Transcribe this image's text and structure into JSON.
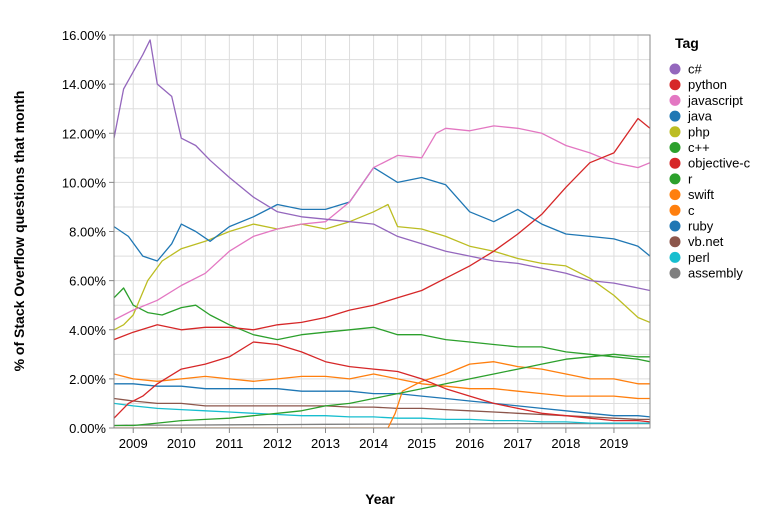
{
  "chart_data": {
    "type": "line",
    "xlabel": "Year",
    "ylabel": "% of Stack Overflow questions that month",
    "legend_title": "Tag",
    "legend_position": "right",
    "grid": true,
    "xlim": [
      2008.6,
      2019.75
    ],
    "ylim": [
      0,
      16
    ],
    "x_ticks": [
      "2009",
      "2010",
      "2011",
      "2012",
      "2013",
      "2014",
      "2015",
      "2016",
      "2017",
      "2018",
      "2019"
    ],
    "y_ticks": [
      "0.00%",
      "2.00%",
      "4.00%",
      "6.00%",
      "8.00%",
      "10.00%",
      "12.00%",
      "14.00%",
      "16.00%"
    ],
    "series": [
      {
        "name": "c#",
        "color": "#9467bd",
        "x": [
          2008.6,
          2008.8,
          2009.0,
          2009.2,
          2009.35,
          2009.5,
          2009.8,
          2010.0,
          2010.3,
          2010.6,
          2011.0,
          2011.5,
          2012.0,
          2012.5,
          2013.0,
          2013.5,
          2014.0,
          2014.5,
          2015.0,
          2015.5,
          2016.0,
          2016.5,
          2017.0,
          2017.5,
          2018.0,
          2018.5,
          2019.0,
          2019.5,
          2019.75
        ],
        "y": [
          11.8,
          13.8,
          14.5,
          15.2,
          15.8,
          14.0,
          13.5,
          11.8,
          11.5,
          10.9,
          10.2,
          9.4,
          8.8,
          8.6,
          8.5,
          8.4,
          8.3,
          7.8,
          7.5,
          7.2,
          7.0,
          6.8,
          6.7,
          6.5,
          6.3,
          6.0,
          5.9,
          5.7,
          5.6
        ]
      },
      {
        "name": "python",
        "color": "#d62728",
        "x": [
          2008.6,
          2009.0,
          2009.5,
          2010.0,
          2010.5,
          2011.0,
          2011.5,
          2012.0,
          2012.5,
          2013.0,
          2013.5,
          2014.0,
          2014.5,
          2015.0,
          2015.5,
          2016.0,
          2016.5,
          2017.0,
          2017.5,
          2018.0,
          2018.5,
          2019.0,
          2019.5,
          2019.75
        ],
        "y": [
          3.6,
          3.9,
          4.2,
          4.0,
          4.1,
          4.1,
          4.0,
          4.2,
          4.3,
          4.5,
          4.8,
          5.0,
          5.3,
          5.6,
          6.1,
          6.6,
          7.2,
          7.9,
          8.7,
          9.8,
          10.8,
          11.2,
          12.6,
          12.2
        ]
      },
      {
        "name": "javascript",
        "color": "#e377c2",
        "x": [
          2008.6,
          2009.0,
          2009.5,
          2010.0,
          2010.5,
          2011.0,
          2011.5,
          2012.0,
          2012.5,
          2013.0,
          2013.5,
          2014.0,
          2014.5,
          2015.0,
          2015.3,
          2015.5,
          2016.0,
          2016.5,
          2017.0,
          2017.5,
          2018.0,
          2018.5,
          2019.0,
          2019.5,
          2019.75
        ],
        "y": [
          4.4,
          4.8,
          5.2,
          5.8,
          6.3,
          7.2,
          7.8,
          8.1,
          8.3,
          8.4,
          9.2,
          10.6,
          11.1,
          11.0,
          12.0,
          12.2,
          12.1,
          12.3,
          12.2,
          12.0,
          11.5,
          11.2,
          10.8,
          10.6,
          10.8
        ]
      },
      {
        "name": "java",
        "color": "#1f77b4",
        "x": [
          2008.6,
          2008.9,
          2009.2,
          2009.5,
          2009.8,
          2010.0,
          2010.3,
          2010.6,
          2011.0,
          2011.5,
          2012.0,
          2012.5,
          2013.0,
          2013.5,
          2014.0,
          2014.5,
          2015.0,
          2015.5,
          2016.0,
          2016.5,
          2017.0,
          2017.5,
          2018.0,
          2018.5,
          2019.0,
          2019.5,
          2019.75
        ],
        "y": [
          8.2,
          7.8,
          7.0,
          6.8,
          7.5,
          8.3,
          8.0,
          7.6,
          8.2,
          8.6,
          9.1,
          8.9,
          8.9,
          9.2,
          10.6,
          10.0,
          10.2,
          9.9,
          8.8,
          8.4,
          8.9,
          8.3,
          7.9,
          7.8,
          7.7,
          7.4,
          7.0
        ]
      },
      {
        "name": "php",
        "color": "#bcbd22",
        "x": [
          2008.6,
          2008.8,
          2009.0,
          2009.3,
          2009.6,
          2010.0,
          2010.5,
          2011.0,
          2011.5,
          2012.0,
          2012.5,
          2013.0,
          2013.5,
          2014.0,
          2014.3,
          2014.5,
          2015.0,
          2015.5,
          2016.0,
          2016.5,
          2017.0,
          2017.5,
          2018.0,
          2018.5,
          2019.0,
          2019.5,
          2019.75
        ],
        "y": [
          4.0,
          4.2,
          4.6,
          6.0,
          6.8,
          7.3,
          7.6,
          8.0,
          8.3,
          8.1,
          8.3,
          8.1,
          8.4,
          8.8,
          9.1,
          8.2,
          8.1,
          7.8,
          7.4,
          7.2,
          6.9,
          6.7,
          6.6,
          6.1,
          5.4,
          4.5,
          4.3
        ]
      },
      {
        "name": "c++",
        "color": "#2ca02c",
        "x": [
          2008.6,
          2008.8,
          2009.0,
          2009.3,
          2009.6,
          2010.0,
          2010.3,
          2010.6,
          2011.0,
          2011.5,
          2012.0,
          2012.5,
          2013.0,
          2013.5,
          2014.0,
          2014.5,
          2015.0,
          2015.5,
          2016.0,
          2016.5,
          2017.0,
          2017.5,
          2018.0,
          2018.5,
          2019.0,
          2019.5,
          2019.75
        ],
        "y": [
          5.3,
          5.7,
          5.0,
          4.7,
          4.6,
          4.9,
          5.0,
          4.6,
          4.2,
          3.8,
          3.6,
          3.8,
          3.9,
          4.0,
          4.1,
          3.8,
          3.8,
          3.6,
          3.5,
          3.4,
          3.3,
          3.3,
          3.1,
          3.0,
          2.9,
          2.8,
          2.7
        ]
      },
      {
        "name": "objective-c",
        "color": "#d62728",
        "x": [
          2008.6,
          2008.9,
          2009.2,
          2009.5,
          2010.0,
          2010.5,
          2011.0,
          2011.5,
          2012.0,
          2012.5,
          2013.0,
          2013.5,
          2014.0,
          2014.5,
          2015.0,
          2015.5,
          2016.0,
          2016.5,
          2017.0,
          2017.5,
          2018.0,
          2018.5,
          2019.0,
          2019.5,
          2019.75
        ],
        "y": [
          0.4,
          1.0,
          1.3,
          1.8,
          2.4,
          2.6,
          2.9,
          3.5,
          3.4,
          3.1,
          2.7,
          2.5,
          2.4,
          2.3,
          2.0,
          1.6,
          1.3,
          1.0,
          0.8,
          0.6,
          0.5,
          0.4,
          0.3,
          0.3,
          0.25
        ]
      },
      {
        "name": "r",
        "color": "#2ca02c",
        "x": [
          2008.6,
          2009.0,
          2009.5,
          2010.0,
          2010.5,
          2011.0,
          2011.5,
          2012.0,
          2012.5,
          2013.0,
          2013.5,
          2014.0,
          2014.5,
          2015.0,
          2015.5,
          2016.0,
          2016.5,
          2017.0,
          2017.5,
          2018.0,
          2018.5,
          2019.0,
          2019.5,
          2019.75
        ],
        "y": [
          0.1,
          0.1,
          0.2,
          0.3,
          0.35,
          0.4,
          0.5,
          0.6,
          0.7,
          0.9,
          1.0,
          1.2,
          1.4,
          1.6,
          1.8,
          2.0,
          2.2,
          2.4,
          2.6,
          2.8,
          2.9,
          3.0,
          2.9,
          2.9
        ]
      },
      {
        "name": "swift",
        "color": "#ff7f0e",
        "x": [
          2008.6,
          2014.3,
          2014.45,
          2014.6,
          2015.0,
          2015.5,
          2016.0,
          2016.5,
          2017.0,
          2017.5,
          2018.0,
          2018.5,
          2019.0,
          2019.5,
          2019.75
        ],
        "y": [
          0,
          0,
          0.6,
          1.5,
          1.9,
          2.2,
          2.6,
          2.7,
          2.5,
          2.4,
          2.2,
          2.0,
          2.0,
          1.8,
          1.8
        ]
      },
      {
        "name": "c",
        "color": "#ff7f0e",
        "x": [
          2008.6,
          2009.0,
          2009.5,
          2010.0,
          2010.5,
          2011.0,
          2011.5,
          2012.0,
          2012.5,
          2013.0,
          2013.5,
          2014.0,
          2014.5,
          2015.0,
          2015.5,
          2016.0,
          2016.5,
          2017.0,
          2017.5,
          2018.0,
          2018.5,
          2019.0,
          2019.5,
          2019.75
        ],
        "y": [
          2.2,
          2.0,
          1.9,
          2.0,
          2.1,
          2.0,
          1.9,
          2.0,
          2.1,
          2.1,
          2.0,
          2.2,
          2.0,
          1.8,
          1.7,
          1.6,
          1.6,
          1.5,
          1.4,
          1.3,
          1.3,
          1.3,
          1.2,
          1.2
        ]
      },
      {
        "name": "ruby",
        "color": "#1f77b4",
        "x": [
          2008.6,
          2009.0,
          2009.5,
          2010.0,
          2010.5,
          2011.0,
          2011.5,
          2012.0,
          2012.5,
          2013.0,
          2013.5,
          2014.0,
          2014.5,
          2015.0,
          2015.5,
          2016.0,
          2016.5,
          2017.0,
          2017.5,
          2018.0,
          2018.5,
          2019.0,
          2019.5,
          2019.75
        ],
        "y": [
          1.8,
          1.8,
          1.7,
          1.7,
          1.6,
          1.6,
          1.6,
          1.6,
          1.5,
          1.5,
          1.5,
          1.4,
          1.4,
          1.3,
          1.2,
          1.1,
          1.0,
          0.9,
          0.8,
          0.7,
          0.6,
          0.5,
          0.5,
          0.45
        ]
      },
      {
        "name": "vb.net",
        "color": "#8c564b",
        "x": [
          2008.6,
          2009.0,
          2009.5,
          2010.0,
          2010.5,
          2011.0,
          2011.5,
          2012.0,
          2012.5,
          2013.0,
          2013.5,
          2014.0,
          2014.5,
          2015.0,
          2015.5,
          2016.0,
          2016.5,
          2017.0,
          2017.5,
          2018.0,
          2018.5,
          2019.0,
          2019.5,
          2019.75
        ],
        "y": [
          1.2,
          1.1,
          1.0,
          1.0,
          0.9,
          0.9,
          0.9,
          0.9,
          0.9,
          0.9,
          0.85,
          0.85,
          0.8,
          0.8,
          0.75,
          0.7,
          0.65,
          0.6,
          0.55,
          0.5,
          0.45,
          0.4,
          0.35,
          0.35
        ]
      },
      {
        "name": "perl",
        "color": "#17becf",
        "x": [
          2008.6,
          2009.0,
          2009.5,
          2010.0,
          2010.5,
          2011.0,
          2011.5,
          2012.0,
          2012.5,
          2013.0,
          2013.5,
          2014.0,
          2014.5,
          2015.0,
          2015.5,
          2016.0,
          2016.5,
          2017.0,
          2017.5,
          2018.0,
          2018.5,
          2019.0,
          2019.5,
          2019.75
        ],
        "y": [
          1.0,
          0.9,
          0.8,
          0.75,
          0.7,
          0.65,
          0.6,
          0.55,
          0.5,
          0.5,
          0.45,
          0.45,
          0.4,
          0.4,
          0.35,
          0.35,
          0.3,
          0.3,
          0.25,
          0.25,
          0.2,
          0.2,
          0.2,
          0.2
        ]
      },
      {
        "name": "assembly",
        "color": "#7f7f7f",
        "x": [
          2008.6,
          2009.0,
          2010.0,
          2011.0,
          2012.0,
          2013.0,
          2014.0,
          2015.0,
          2016.0,
          2017.0,
          2018.0,
          2019.0,
          2019.75
        ],
        "y": [
          0.1,
          0.12,
          0.12,
          0.13,
          0.14,
          0.15,
          0.16,
          0.16,
          0.17,
          0.18,
          0.18,
          0.18,
          0.18
        ]
      }
    ]
  }
}
